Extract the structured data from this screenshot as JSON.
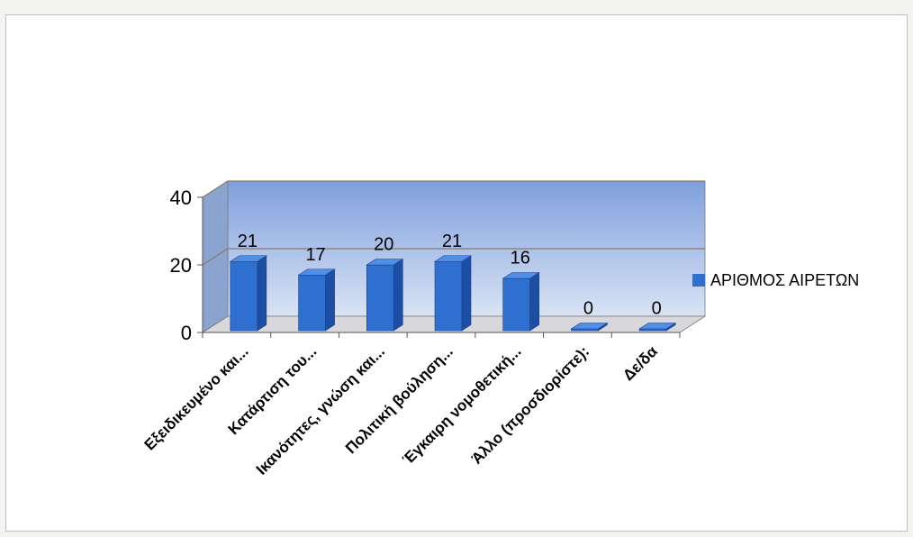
{
  "chart_data": {
    "type": "bar",
    "categories": [
      "Εξειδικευμένο και...",
      "Κατάρτιση του...",
      "Ικανότητες, γνώση και...",
      "Πολιτική βούληση...",
      "Έγκαιρη νομοθετική...",
      "Άλλο (προσδιορίστε):",
      "Δε/δα"
    ],
    "series": [
      {
        "name": "ΑΡΙΘΜΟΣ ΑΙΡΕΤΩΝ",
        "values": [
          21,
          17,
          20,
          21,
          16,
          0,
          0
        ]
      }
    ],
    "ylim": [
      0,
      40
    ],
    "yticks": [
      0,
      20,
      40
    ],
    "grid": true,
    "legend": "right",
    "bar_color": "#2e6fd0",
    "bar_top_color": "#4f8fe8",
    "bar_side_color": "#1c4fa3",
    "wall_color": "#9db7e6",
    "floor_color": "#d8d8dc",
    "gridline_color": "#8a7a6a"
  }
}
